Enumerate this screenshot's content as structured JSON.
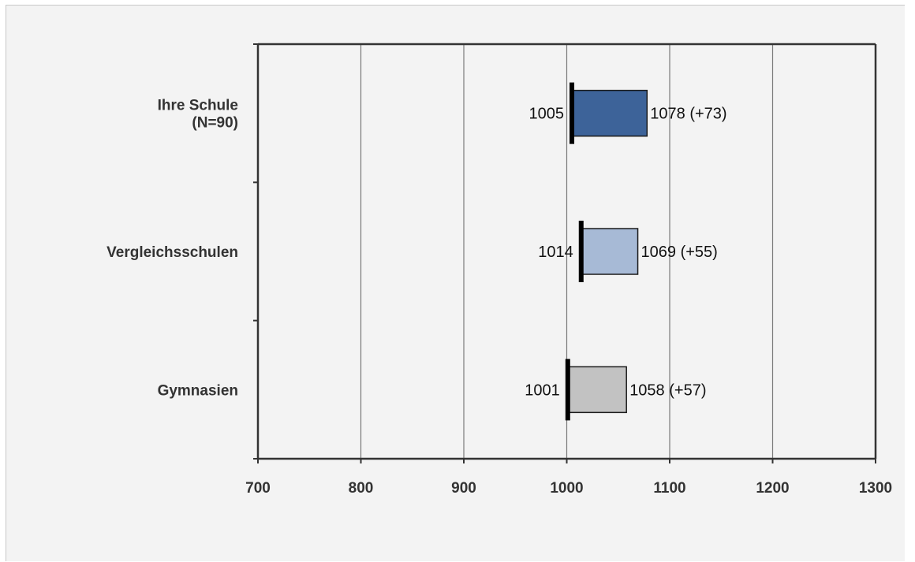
{
  "chart_data": {
    "type": "bar",
    "orientation": "horizontal",
    "title": "",
    "xlabel": "",
    "ylabel": "",
    "xlim": [
      700,
      1300
    ],
    "xticks": [
      700,
      800,
      900,
      1000,
      1100,
      1200,
      1300
    ],
    "grid": "vertical",
    "legend": "none",
    "categories": [
      {
        "lines": [
          "Ihre Schule",
          "(N=90)"
        ],
        "start": 1005,
        "end": 1078,
        "start_label": "1005",
        "end_label": "1078 (+73)",
        "color": "#3d6399"
      },
      {
        "lines": [
          "Vergleichsschulen"
        ],
        "start": 1014,
        "end": 1069,
        "start_label": "1014",
        "end_label": "1069 (+55)",
        "color": "#a7bad6"
      },
      {
        "lines": [
          "Gymnasien"
        ],
        "start": 1001,
        "end": 1058,
        "start_label": "1001",
        "end_label": "1058 (+57)",
        "color": "#c2c2c2"
      }
    ]
  }
}
